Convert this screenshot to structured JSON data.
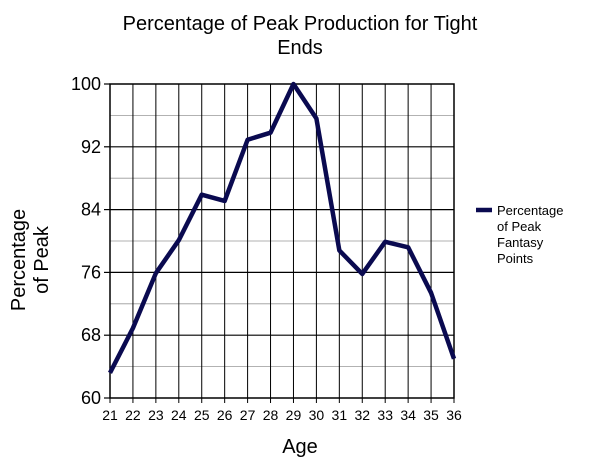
{
  "chart_data": {
    "type": "line",
    "title_lines": [
      "Percentage of Peak Production for Tight",
      "Ends"
    ],
    "xlabel": "Age",
    "ylabel_lines": [
      "Percentage",
      "of Peak"
    ],
    "x": [
      21,
      22,
      23,
      24,
      25,
      26,
      27,
      28,
      29,
      30,
      31,
      32,
      33,
      34,
      35,
      36
    ],
    "y_ticks": [
      60,
      68,
      76,
      84,
      92,
      100
    ],
    "ylim": [
      60,
      100
    ],
    "grid": true,
    "legend_position": "right",
    "series": [
      {
        "name_lines": [
          "Percentage",
          "of Peak",
          "Fantasy",
          "Points"
        ],
        "color": "#0a0a50",
        "values": [
          63.2,
          68.9,
          75.9,
          80.1,
          85.9,
          85.1,
          92.9,
          93.8,
          100,
          95.6,
          78.8,
          75.8,
          79.9,
          79.2,
          73.4,
          65.0
        ]
      }
    ]
  }
}
